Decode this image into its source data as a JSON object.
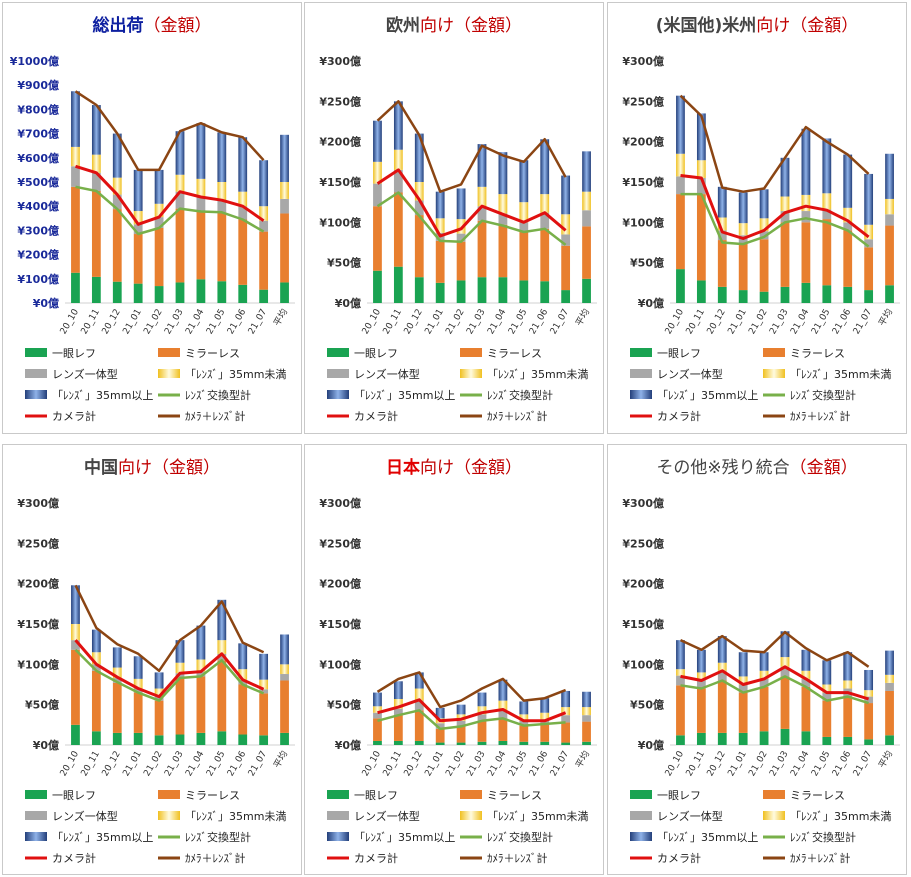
{
  "legend_labels": [
    "一眼レフ",
    "ミラーレス",
    "レンズ一体型",
    "「ﾚﾝｽﾞ」35mm未満",
    "「ﾚﾝｽﾞ」35mm以上",
    "ﾚﾝｽﾞ交換型計",
    "カメラ計",
    "ｶﾒﾗ＋ﾚﾝｽﾞ計"
  ],
  "colors": {
    "dslr": "#1aa352",
    "mirrorless": "#e87f2f",
    "fixed": "#a8a8a8",
    "lens_small": "#f6e36a",
    "lens_large": "#3a5fa8",
    "interch": "#78b04a",
    "camera": "#e01010",
    "total": "#8b4513"
  },
  "chart_data": [
    {
      "type": "bar",
      "title": "総出荷",
      "title_suffix": "（金額）",
      "title_style": "blue",
      "categories": [
        "20_10",
        "20_11",
        "20_12",
        "21_01",
        "21_02",
        "21_03",
        "21_04",
        "21_05",
        "21_06",
        "21_07",
        "平均"
      ],
      "y_ticks": [
        "¥0億",
        "¥100億",
        "¥200億",
        "¥300億",
        "¥400億",
        "¥500億",
        "¥600億",
        "¥700億",
        "¥800億",
        "¥900億",
        "¥1000億"
      ],
      "ylim": [
        0,
        1000
      ],
      "series": [
        {
          "name": "一眼レフ",
          "values": [
            125,
            108,
            88,
            80,
            70,
            85,
            98,
            90,
            75,
            55,
            85
          ]
        },
        {
          "name": "ミラーレス",
          "values": [
            355,
            355,
            300,
            205,
            240,
            305,
            280,
            285,
            270,
            240,
            285
          ]
        },
        {
          "name": "レンズ一体型",
          "values": [
            85,
            75,
            60,
            40,
            45,
            70,
            60,
            50,
            55,
            45,
            60
          ]
        },
        {
          "name": "「ﾚﾝｽﾞ」35mm未満",
          "values": [
            80,
            75,
            70,
            55,
            55,
            70,
            75,
            75,
            60,
            60,
            70
          ]
        },
        {
          "name": "「ﾚﾝｽﾞ」35mm以上",
          "values": [
            230,
            205,
            182,
            170,
            140,
            180,
            230,
            205,
            225,
            190,
            195
          ]
        },
        {
          "name": "ﾚﾝｽﾞ交換型計",
          "values": [
            480,
            463,
            388,
            285,
            310,
            390,
            378,
            375,
            345,
            295,
            370
          ]
        },
        {
          "name": "カメラ計",
          "values": [
            565,
            538,
            448,
            325,
            355,
            460,
            438,
            425,
            400,
            340,
            430
          ]
        },
        {
          "name": "ｶﾒﾗ＋ﾚﾝｽﾞ計",
          "values": [
            875,
            818,
            700,
            550,
            550,
            710,
            743,
            705,
            685,
            590,
            695
          ]
        }
      ]
    },
    {
      "type": "bar",
      "title": "欧州",
      "title_suffix": "向け（金額）",
      "title_style": "gray",
      "categories": [
        "20_10",
        "20_11",
        "20_12",
        "21_01",
        "21_02",
        "21_03",
        "21_04",
        "21_05",
        "21_06",
        "21_07",
        "平均"
      ],
      "y_ticks": [
        "¥0億",
        "¥50億",
        "¥100億",
        "¥150億",
        "¥200億",
        "¥250億",
        "¥300億"
      ],
      "ylim": [
        0,
        300
      ],
      "series": [
        {
          "name": "一眼レフ",
          "values": [
            40,
            45,
            32,
            25,
            28,
            32,
            32,
            28,
            27,
            16,
            30
          ]
        },
        {
          "name": "ミラーレス",
          "values": [
            80,
            92,
            77,
            52,
            48,
            70,
            65,
            60,
            65,
            55,
            65
          ]
        },
        {
          "name": "レンズ一体型",
          "values": [
            28,
            28,
            18,
            10,
            10,
            18,
            14,
            12,
            20,
            14,
            20
          ]
        },
        {
          "name": "「ﾚﾝｽﾞ」35mm未満",
          "values": [
            27,
            25,
            23,
            18,
            18,
            24,
            24,
            25,
            23,
            25,
            23
          ]
        },
        {
          "name": "「ﾚﾝｽﾞ」35mm以上",
          "values": [
            51,
            60,
            60,
            33,
            38,
            53,
            52,
            52,
            68,
            48,
            50
          ]
        },
        {
          "name": "ﾚﾝｽﾞ交換型計",
          "values": [
            120,
            137,
            108,
            77,
            76,
            102,
            96,
            88,
            92,
            72,
            95
          ]
        },
        {
          "name": "カメラ計",
          "values": [
            148,
            165,
            128,
            83,
            92,
            120,
            110,
            100,
            112,
            90,
            115
          ]
        },
        {
          "name": "ｶﾒﾗ＋ﾚﾝｽﾞ計",
          "values": [
            226,
            250,
            208,
            138,
            147,
            195,
            183,
            175,
            203,
            156,
            188
          ]
        }
      ]
    },
    {
      "type": "bar",
      "title": "(米国他)米州",
      "title_suffix": "向け（金額）",
      "title_style": "gray",
      "categories": [
        "20_10",
        "20_11",
        "20_12",
        "21_01",
        "21_02",
        "21_03",
        "21_04",
        "21_05",
        "21_06",
        "21_07",
        "平均"
      ],
      "y_ticks": [
        "¥0億",
        "¥50億",
        "¥100億",
        "¥150億",
        "¥200億",
        "¥250億",
        "¥300億"
      ],
      "ylim": [
        0,
        300
      ],
      "series": [
        {
          "name": "一眼レフ",
          "values": [
            42,
            28,
            20,
            16,
            14,
            20,
            25,
            22,
            20,
            16,
            22
          ]
        },
        {
          "name": "ミラーレス",
          "values": [
            93,
            107,
            58,
            58,
            65,
            80,
            75,
            82,
            70,
            53,
            74
          ]
        },
        {
          "name": "レンズ一体型",
          "values": [
            22,
            20,
            12,
            10,
            10,
            14,
            14,
            12,
            10,
            10,
            14
          ]
        },
        {
          "name": "「ﾚﾝｽﾞ」35mm未満",
          "values": [
            28,
            22,
            16,
            15,
            16,
            18,
            20,
            20,
            18,
            18,
            19
          ]
        },
        {
          "name": "「ﾚﾝｽﾞ」35mm以上",
          "values": [
            72,
            58,
            38,
            38,
            36,
            48,
            82,
            68,
            66,
            63,
            56
          ]
        },
        {
          "name": "ﾚﾝｽﾞ交換型計",
          "values": [
            135,
            135,
            75,
            73,
            82,
            100,
            105,
            100,
            90,
            70,
            96
          ]
        },
        {
          "name": "カメラ計",
          "values": [
            158,
            155,
            88,
            80,
            90,
            112,
            120,
            115,
            102,
            82,
            110
          ]
        },
        {
          "name": "ｶﾒﾗ＋ﾚﾝｽﾞ計",
          "values": [
            257,
            232,
            143,
            138,
            142,
            180,
            218,
            200,
            184,
            160,
            185
          ]
        }
      ]
    },
    {
      "type": "bar",
      "title": "中国",
      "title_suffix": "向け（金額）",
      "title_style": "gray",
      "categories": [
        "20_10",
        "20_11",
        "20_12",
        "21_01",
        "21_02",
        "21_03",
        "21_04",
        "21_05",
        "21_06",
        "21_07",
        "平均"
      ],
      "y_ticks": [
        "¥0億",
        "¥50億",
        "¥100億",
        "¥150億",
        "¥200億",
        "¥250億",
        "¥300億"
      ],
      "ylim": [
        0,
        300
      ],
      "series": [
        {
          "name": "一眼レフ",
          "values": [
            25,
            17,
            15,
            15,
            12,
            13,
            15,
            17,
            13,
            12,
            15
          ]
        },
        {
          "name": "ミラーレス",
          "values": [
            93,
            75,
            62,
            50,
            43,
            70,
            70,
            88,
            62,
            52,
            65
          ]
        },
        {
          "name": "レンズ一体型",
          "values": [
            12,
            8,
            6,
            5,
            5,
            6,
            6,
            8,
            6,
            5,
            8
          ]
        },
        {
          "name": "「ﾚﾝｽﾞ」35mm未満",
          "values": [
            20,
            15,
            13,
            12,
            10,
            13,
            15,
            17,
            13,
            12,
            12
          ]
        },
        {
          "name": "「ﾚﾝｽﾞ」35mm以上",
          "values": [
            48,
            28,
            25,
            28,
            20,
            28,
            42,
            50,
            32,
            32,
            37
          ]
        },
        {
          "name": "ﾚﾝｽﾞ交換型計",
          "values": [
            118,
            92,
            78,
            65,
            55,
            83,
            85,
            105,
            75,
            64,
            80
          ]
        },
        {
          "name": "カメラ計",
          "values": [
            130,
            100,
            84,
            70,
            60,
            89,
            91,
            113,
            81,
            69,
            88
          ]
        },
        {
          "name": "ｶﾒﾗ＋ﾚﾝｽﾞ計",
          "values": [
            198,
            145,
            125,
            113,
            92,
            130,
            148,
            178,
            127,
            115,
            137
          ]
        }
      ]
    },
    {
      "type": "bar",
      "title": "日本",
      "title_suffix": "向け（金額）",
      "title_style": "red",
      "categories": [
        "20_10",
        "20_11",
        "20_12",
        "21_01",
        "21_02",
        "21_03",
        "21_04",
        "21_05",
        "21_06",
        "21_07",
        "平均"
      ],
      "y_ticks": [
        "¥0億",
        "¥50億",
        "¥100億",
        "¥150億",
        "¥200億",
        "¥250億",
        "¥300億"
      ],
      "ylim": [
        0,
        300
      ],
      "series": [
        {
          "name": "一眼レフ",
          "values": [
            5,
            5,
            5,
            3,
            3,
            4,
            5,
            4,
            4,
            3,
            4
          ]
        },
        {
          "name": "ミラーレス",
          "values": [
            28,
            32,
            38,
            17,
            20,
            26,
            28,
            20,
            22,
            25,
            25
          ]
        },
        {
          "name": "レンズ一体型",
          "values": [
            7,
            8,
            12,
            7,
            7,
            8,
            10,
            6,
            6,
            9,
            8
          ]
        },
        {
          "name": "「ﾚﾝｽﾞ」35mm未満",
          "values": [
            8,
            12,
            15,
            6,
            8,
            10,
            12,
            8,
            8,
            10,
            10
          ]
        },
        {
          "name": "「ﾚﾝｽﾞ」35mm以上",
          "values": [
            17,
            22,
            20,
            13,
            12,
            17,
            26,
            16,
            18,
            20,
            19
          ]
        },
        {
          "name": "ﾚﾝｽﾞ交換型計",
          "values": [
            30,
            37,
            43,
            20,
            23,
            30,
            33,
            24,
            26,
            28,
            30
          ]
        },
        {
          "name": "カメラ計",
          "values": [
            40,
            47,
            56,
            30,
            32,
            40,
            44,
            30,
            30,
            40,
            40
          ]
        },
        {
          "name": "ｶﾒﾗ＋ﾚﾝｽﾞ計",
          "values": [
            66,
            82,
            90,
            47,
            55,
            70,
            82,
            55,
            58,
            68,
            68
          ]
        }
      ]
    },
    {
      "type": "bar",
      "title": "その他※残り統合",
      "title_suffix": "（金額）",
      "title_style": "plain",
      "categories": [
        "20_10",
        "20_11",
        "20_12",
        "21_01",
        "21_02",
        "21_03",
        "21_04",
        "21_05",
        "21_06",
        "21_07",
        "平均"
      ],
      "y_ticks": [
        "¥0億",
        "¥50億",
        "¥100億",
        "¥150億",
        "¥200億",
        "¥250億",
        "¥300億"
      ],
      "ylim": [
        0,
        300
      ],
      "series": [
        {
          "name": "一眼レフ",
          "values": [
            12,
            15,
            15,
            15,
            17,
            20,
            17,
            10,
            10,
            7,
            12
          ]
        },
        {
          "name": "ミラーレス",
          "values": [
            62,
            55,
            65,
            50,
            55,
            65,
            55,
            45,
            50,
            45,
            55
          ]
        },
        {
          "name": "レンズ一体型",
          "values": [
            12,
            10,
            12,
            10,
            10,
            12,
            10,
            10,
            10,
            8,
            10
          ]
        },
        {
          "name": "「ﾚﾝｽﾞ」35mm未満",
          "values": [
            8,
            10,
            10,
            10,
            10,
            12,
            10,
            10,
            10,
            8,
            10
          ]
        },
        {
          "name": "「ﾚﾝｽﾞ」35mm以上",
          "values": [
            36,
            28,
            33,
            30,
            23,
            32,
            26,
            30,
            35,
            25,
            30
          ]
        },
        {
          "name": "ﾚﾝｽﾞ交換型計",
          "values": [
            74,
            70,
            80,
            65,
            72,
            85,
            72,
            55,
            60,
            52,
            67
          ]
        },
        {
          "name": "カメラ計",
          "values": [
            85,
            80,
            92,
            75,
            82,
            97,
            82,
            65,
            65,
            57,
            77
          ]
        },
        {
          "name": "ｶﾒﾗ＋ﾚﾝｽﾞ計",
          "values": [
            130,
            118,
            135,
            117,
            115,
            140,
            120,
            105,
            115,
            97,
            118
          ]
        }
      ]
    }
  ]
}
